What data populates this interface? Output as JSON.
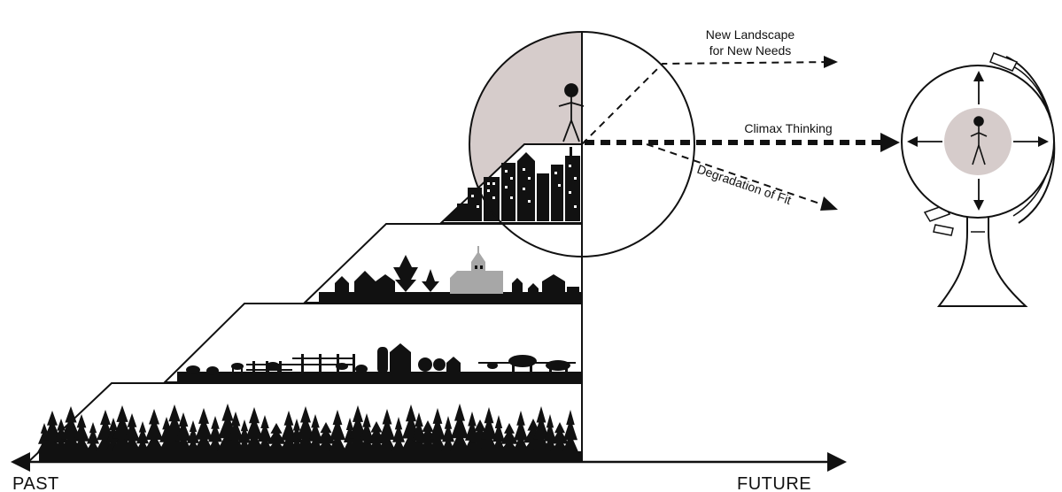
{
  "axis": {
    "past_label": "PAST",
    "future_label": "FUTURE"
  },
  "trajectories": {
    "new_landscape_line1": "New Landscape",
    "new_landscape_line2": "for New Needs",
    "climax_thinking": "Climax Thinking",
    "degradation_of_fit": "Degradation of Fit"
  },
  "stages": [
    {
      "name": "forest",
      "icon": "conifer-forest-silhouette"
    },
    {
      "name": "farm",
      "icon": "farm-barn-livestock-silhouette"
    },
    {
      "name": "village",
      "icon": "village-church-houses-silhouette"
    },
    {
      "name": "city",
      "icon": "city-skyscrapers-silhouette"
    }
  ],
  "colors": {
    "ink": "#111111",
    "present_circle_fill": "#d6cccb",
    "globe_figure_fill": "#d6cccb",
    "church_gray": "#a7a7a7"
  }
}
